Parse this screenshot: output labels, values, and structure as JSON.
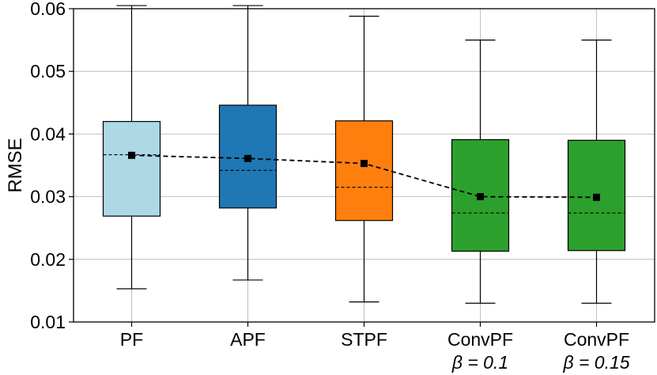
{
  "chart_data": {
    "type": "box",
    "ylabel": "RMSE",
    "xlabel": "",
    "ylim": [
      0.01,
      0.06
    ],
    "yticks": [
      "0.01",
      "0.02",
      "0.03",
      "0.04",
      "0.05",
      "0.06"
    ],
    "grid": true,
    "categories": [
      {
        "label": "PF",
        "sublabel": ""
      },
      {
        "label": "APF",
        "sublabel": ""
      },
      {
        "label": "STPF",
        "sublabel": ""
      },
      {
        "label": "ConvPF",
        "sublabel": "β = 0.1"
      },
      {
        "label": "ConvPF",
        "sublabel": "β = 0.15"
      }
    ],
    "boxes": [
      {
        "whisker_low": 0.0153,
        "q1": 0.0269,
        "median": 0.0367,
        "q3": 0.042,
        "whisker_high": 0.0605,
        "mean": 0.0366,
        "color": "#add8e6"
      },
      {
        "whisker_low": 0.0167,
        "q1": 0.0282,
        "median": 0.0342,
        "q3": 0.0446,
        "whisker_high": 0.0605,
        "mean": 0.0361,
        "color": "#1f77b4"
      },
      {
        "whisker_low": 0.0132,
        "q1": 0.0262,
        "median": 0.0315,
        "q3": 0.0421,
        "whisker_high": 0.0588,
        "mean": 0.0353,
        "color": "#ff7f0e"
      },
      {
        "whisker_low": 0.013,
        "q1": 0.0213,
        "median": 0.0274,
        "q3": 0.0391,
        "whisker_high": 0.055,
        "mean": 0.03,
        "color": "#2ca02c"
      },
      {
        "whisker_low": 0.013,
        "q1": 0.0214,
        "median": 0.0274,
        "q3": 0.039,
        "whisker_high": 0.055,
        "mean": 0.0299,
        "color": "#2ca02c"
      }
    ],
    "mean_line_style": "dashed black line with square markers"
  }
}
